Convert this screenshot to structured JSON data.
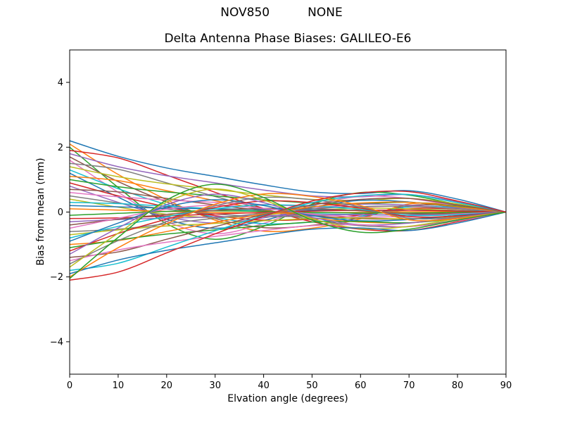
{
  "chart_data": {
    "type": "line",
    "suptitle": "NOV850          NONE",
    "title": "Delta Antenna Phase Biases: GALILEO-E6",
    "xlabel": "Elvation angle (degrees)",
    "ylabel": "Bias from mean (mm)",
    "xlim": [
      0,
      90
    ],
    "ylim": [
      -5,
      5
    ],
    "xticks": [
      0,
      10,
      20,
      30,
      40,
      50,
      60,
      70,
      80,
      90
    ],
    "yticks": [
      -4,
      -2,
      0,
      2,
      4
    ],
    "grid": false,
    "legend": "none",
    "x": [
      0,
      10,
      20,
      30,
      40,
      50,
      60,
      70,
      80,
      90
    ],
    "palette": [
      "#1f77b4",
      "#ff7f0e",
      "#2ca02c",
      "#d62728",
      "#9467bd",
      "#8c564b",
      "#e377c2",
      "#7f7f7f",
      "#bcbd22",
      "#17becf"
    ],
    "series": [
      {
        "values": [
          2.2,
          1.72,
          1.36,
          1.1,
          0.84,
          0.62,
          0.57,
          0.66,
          0.4,
          0
        ]
      },
      {
        "values": [
          2.1,
          1.16,
          0.38,
          -0.25,
          -0.59,
          -0.5,
          -0.21,
          0.25,
          0.21,
          0
        ]
      },
      {
        "values": [
          2.0,
          0.76,
          -0.36,
          -0.84,
          -0.44,
          0.24,
          0.6,
          0.52,
          0.24,
          0
        ]
      },
      {
        "values": [
          1.9,
          1.67,
          1.14,
          0.61,
          0.11,
          -0.3,
          -0.53,
          -0.57,
          -0.3,
          0
        ]
      },
      {
        "values": [
          1.8,
          1.4,
          1.12,
          0.9,
          0.68,
          0.5,
          0.47,
          0.54,
          0.32,
          0
        ]
      },
      {
        "values": [
          1.7,
          0.94,
          0.31,
          -0.2,
          -0.48,
          -0.41,
          -0.17,
          0.2,
          0.17,
          0
        ]
      },
      {
        "values": [
          1.6,
          0.61,
          -0.29,
          -0.67,
          -0.35,
          0.19,
          0.48,
          0.42,
          0.19,
          0
        ]
      },
      {
        "values": [
          1.5,
          1.32,
          0.9,
          0.48,
          0.09,
          -0.24,
          -0.42,
          -0.45,
          -0.24,
          0
        ]
      },
      {
        "values": [
          1.4,
          1.09,
          0.87,
          0.7,
          0.53,
          0.39,
          0.36,
          0.42,
          0.25,
          0
        ]
      },
      {
        "values": [
          1.3,
          0.72,
          0.23,
          -0.16,
          -0.36,
          -0.31,
          -0.13,
          0.16,
          0.13,
          0
        ]
      },
      {
        "values": [
          1.2,
          0.46,
          -0.22,
          -0.5,
          -0.26,
          0.14,
          0.36,
          0.31,
          0.14,
          0
        ]
      },
      {
        "values": [
          1.1,
          0.97,
          0.66,
          0.35,
          0.07,
          -0.18,
          -0.31,
          -0.33,
          -0.18,
          0
        ]
      },
      {
        "values": [
          1.0,
          0.78,
          0.62,
          0.5,
          0.38,
          0.28,
          0.26,
          0.3,
          0.18,
          0
        ]
      },
      {
        "values": [
          0.9,
          0.5,
          0.16,
          -0.11,
          -0.25,
          -0.22,
          -0.09,
          0.11,
          0.09,
          0
        ]
      },
      {
        "values": [
          0.8,
          0.3,
          -0.14,
          -0.34,
          -0.18,
          0.1,
          0.24,
          0.21,
          0.1,
          0
        ]
      },
      {
        "values": [
          0.7,
          0.62,
          0.42,
          0.22,
          0.04,
          -0.11,
          -0.2,
          -0.21,
          -0.11,
          0
        ]
      },
      {
        "values": [
          0.6,
          0.47,
          0.37,
          0.3,
          0.23,
          0.17,
          0.16,
          0.18,
          0.11,
          0
        ]
      },
      {
        "values": [
          0.5,
          0.28,
          0.09,
          -0.06,
          -0.14,
          -0.12,
          -0.05,
          0.06,
          0.05,
          0
        ]
      },
      {
        "values": [
          0.4,
          0.15,
          -0.07,
          -0.17,
          -0.09,
          0.05,
          0.12,
          0.1,
          0.05,
          0
        ]
      },
      {
        "values": [
          0.3,
          0.26,
          0.18,
          0.1,
          0.02,
          -0.05,
          -0.08,
          -0.09,
          -0.05,
          0
        ]
      },
      {
        "values": [
          0.2,
          0.16,
          0.12,
          0.1,
          0.08,
          0.06,
          0.05,
          0.06,
          0.04,
          0
        ]
      },
      {
        "values": [
          0.1,
          0.06,
          0.02,
          -0.01,
          -0.03,
          -0.02,
          -0.01,
          0.01,
          0.01,
          0
        ]
      },
      {
        "values": [
          -0.1,
          -0.04,
          0.02,
          0.04,
          0.02,
          -0.01,
          -0.03,
          -0.03,
          -0.01,
          0
        ]
      },
      {
        "values": [
          -0.2,
          -0.18,
          -0.12,
          -0.06,
          -0.01,
          0.03,
          0.06,
          0.06,
          0.03,
          0
        ]
      },
      {
        "values": [
          -0.3,
          -0.23,
          -0.19,
          -0.15,
          -0.11,
          -0.08,
          -0.08,
          -0.09,
          -0.05,
          0
        ]
      },
      {
        "values": [
          -0.4,
          -0.22,
          -0.07,
          0.05,
          0.11,
          0.1,
          0.04,
          -0.05,
          -0.04,
          0
        ]
      },
      {
        "values": [
          -0.5,
          -0.19,
          0.09,
          0.21,
          0.11,
          -0.06,
          -0.15,
          -0.13,
          -0.06,
          0
        ]
      },
      {
        "values": [
          -0.6,
          -0.53,
          -0.36,
          -0.19,
          -0.04,
          0.1,
          0.17,
          0.18,
          0.1,
          0
        ]
      },
      {
        "values": [
          -0.7,
          -0.55,
          -0.43,
          -0.35,
          -0.27,
          -0.2,
          -0.18,
          -0.21,
          -0.13,
          0
        ]
      },
      {
        "values": [
          -0.8,
          -0.44,
          -0.14,
          0.1,
          0.22,
          0.19,
          0.08,
          -0.1,
          -0.08,
          0
        ]
      },
      {
        "values": [
          -0.9,
          -0.34,
          0.16,
          0.38,
          0.2,
          -0.11,
          -0.27,
          -0.23,
          -0.11,
          0
        ]
      },
      {
        "values": [
          -1.0,
          -0.88,
          -0.6,
          -0.32,
          -0.06,
          0.16,
          0.28,
          0.3,
          0.16,
          0
        ]
      },
      {
        "values": [
          -1.1,
          -0.86,
          -0.68,
          -0.55,
          -0.42,
          -0.31,
          -0.29,
          -0.33,
          -0.2,
          0
        ]
      },
      {
        "values": [
          -1.2,
          -0.66,
          -0.22,
          0.14,
          0.34,
          0.29,
          0.12,
          -0.14,
          -0.12,
          0
        ]
      },
      {
        "values": [
          -1.3,
          -0.49,
          0.23,
          0.55,
          0.29,
          -0.16,
          -0.39,
          -0.34,
          -0.16,
          0
        ]
      },
      {
        "values": [
          -1.4,
          -1.23,
          -0.84,
          -0.45,
          -0.08,
          0.22,
          0.39,
          0.42,
          0.22,
          0
        ]
      },
      {
        "values": [
          -1.5,
          -1.17,
          -0.93,
          -0.75,
          -0.57,
          -0.42,
          -0.39,
          -0.45,
          -0.27,
          0
        ]
      },
      {
        "values": [
          -1.6,
          -0.88,
          -0.29,
          0.19,
          0.45,
          0.38,
          0.16,
          -0.19,
          -0.16,
          0
        ]
      },
      {
        "values": [
          -1.7,
          -0.65,
          0.31,
          0.71,
          0.37,
          -0.2,
          -0.51,
          -0.44,
          -0.2,
          0
        ]
      },
      {
        "values": [
          -1.8,
          -1.58,
          -1.08,
          -0.58,
          -0.11,
          0.29,
          0.5,
          0.54,
          0.29,
          0
        ]
      },
      {
        "values": [
          -1.9,
          -1.48,
          -1.18,
          -0.95,
          -0.72,
          -0.53,
          -0.49,
          -0.57,
          -0.34,
          0
        ]
      },
      {
        "values": [
          -2.0,
          -1.1,
          -0.36,
          0.24,
          0.56,
          0.48,
          0.2,
          -0.24,
          -0.2,
          0
        ]
      },
      {
        "values": [
          -2.05,
          -0.78,
          0.37,
          0.86,
          0.45,
          -0.25,
          -0.62,
          -0.53,
          -0.25,
          0
        ]
      },
      {
        "values": [
          -2.1,
          -1.85,
          -1.26,
          -0.67,
          -0.13,
          0.34,
          0.59,
          0.63,
          0.34,
          0
        ]
      }
    ]
  }
}
